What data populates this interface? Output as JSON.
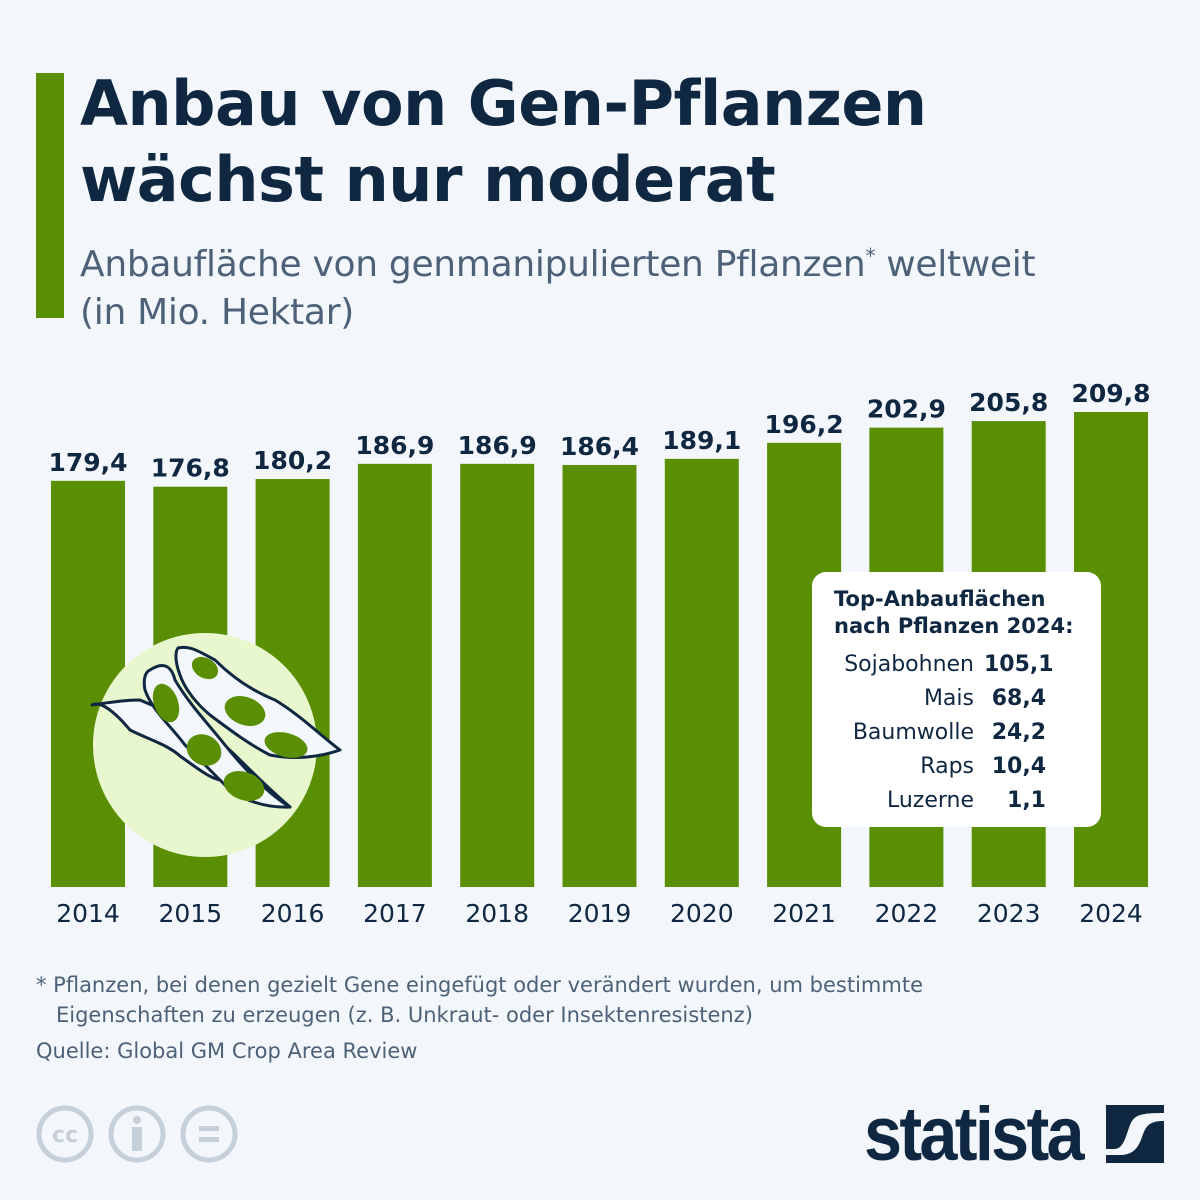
{
  "title_line1": "Anbau von Gen-Pflanzen",
  "title_line2": "wächst nur moderat",
  "subtitle_main": "Anbaufläche von genmanipulierten Pflanzen",
  "subtitle_mark": "*",
  "subtitle_rest": " weltweit",
  "subtitle_line2": "(in Mio. Hektar)",
  "colors": {
    "bar": "#5a8f04",
    "text": "#0f2741",
    "circle": "#e9f7cf"
  },
  "chart_data": {
    "type": "bar",
    "categories": [
      "2014",
      "2015",
      "2016",
      "2017",
      "2018",
      "2019",
      "2020",
      "2021",
      "2022",
      "2023",
      "2024"
    ],
    "values": [
      179.4,
      176.8,
      180.2,
      186.9,
      186.9,
      186.4,
      189.1,
      196.2,
      202.9,
      205.8,
      209.8
    ],
    "labels": [
      "179,4",
      "176,8",
      "180,2",
      "186,9",
      "186,9",
      "186,4",
      "189,1",
      "196,2",
      "202,9",
      "205,8",
      "209,8"
    ],
    "ylim": [
      0,
      210
    ],
    "grid": false,
    "xlabel": "",
    "ylabel": ""
  },
  "inset": {
    "title_line1": "Top-Anbauflächen",
    "title_line2": "nach Pflanzen 2024:",
    "rows": [
      {
        "name": "Sojabohnen",
        "value": "105,1"
      },
      {
        "name": "Mais",
        "value": "68,4"
      },
      {
        "name": "Baumwolle",
        "value": "24,2"
      },
      {
        "name": "Raps",
        "value": "10,4"
      },
      {
        "name": "Luzerne",
        "value": "1,1"
      }
    ]
  },
  "footnote_line1": "* Pflanzen, bei denen gezielt Gene eingefügt oder verändert wurden, um bestimmte",
  "footnote_line2": "Eigenschaften zu erzeugen (z. B. Unkraut- oder Insektenresistenz)",
  "source": "Quelle: Global GM Crop Area Review",
  "brand": "statista",
  "icons": [
    "cc-icon",
    "attribution-icon",
    "no-derivatives-icon",
    "statista-logo-icon"
  ]
}
